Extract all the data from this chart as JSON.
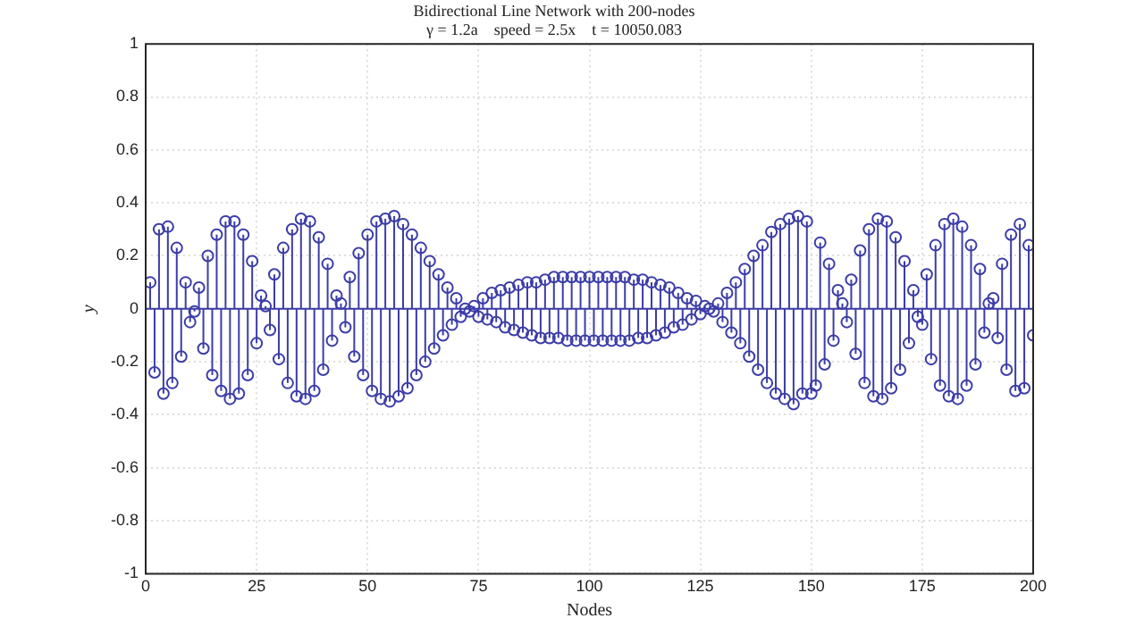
{
  "chart_data": {
    "type": "lollipop",
    "title": "Bidirectional Line Network with 200-nodes",
    "subtitle": "γ = 1.2a    speed = 2.5x    t = 10050.083",
    "xlabel": "Nodes",
    "ylabel": "y",
    "color": "#3c3ca8",
    "marker": "circle",
    "grid": true,
    "ref_lines": [
      {
        "axis": "y",
        "value": 0,
        "color": "#3c3ca8"
      }
    ],
    "x": [
      1,
      2,
      3,
      4,
      5,
      6,
      7,
      8,
      9,
      10,
      11,
      12,
      13,
      14,
      15,
      16,
      17,
      18,
      19,
      20,
      21,
      22,
      23,
      24,
      25,
      26,
      27,
      28,
      29,
      30,
      31,
      32,
      33,
      34,
      35,
      36,
      37,
      38,
      39,
      40,
      41,
      42,
      43,
      44,
      45,
      46,
      47,
      48,
      49,
      50,
      51,
      52,
      53,
      54,
      55,
      56,
      57,
      58,
      59,
      60,
      61,
      62,
      63,
      64,
      65,
      66,
      67,
      68,
      69,
      70,
      71,
      72,
      73,
      74,
      75,
      76,
      77,
      78,
      79,
      80,
      81,
      82,
      83,
      84,
      85,
      86,
      87,
      88,
      89,
      90,
      91,
      92,
      93,
      94,
      95,
      96,
      97,
      98,
      99,
      100,
      101,
      102,
      103,
      104,
      105,
      106,
      107,
      108,
      109,
      110,
      111,
      112,
      113,
      114,
      115,
      116,
      117,
      118,
      119,
      120,
      121,
      122,
      123,
      124,
      125,
      126,
      127,
      128,
      129,
      130,
      131,
      132,
      133,
      134,
      135,
      136,
      137,
      138,
      139,
      140,
      141,
      142,
      143,
      144,
      145,
      146,
      147,
      148,
      149,
      150,
      151,
      152,
      153,
      154,
      155,
      156,
      157,
      158,
      159,
      160,
      161,
      162,
      163,
      164,
      165,
      166,
      167,
      168,
      169,
      170,
      171,
      172,
      173,
      174,
      175,
      176,
      177,
      178,
      179,
      180,
      181,
      182,
      183,
      184,
      185,
      186,
      187,
      188,
      189,
      190,
      191,
      192,
      193,
      194,
      195,
      196,
      197,
      198,
      199,
      200
    ],
    "xlim": [
      0,
      200
    ],
    "xticks": [
      0,
      25,
      50,
      75,
      100,
      125,
      150,
      175,
      200
    ],
    "ylim": [
      -1,
      1
    ],
    "yticks": [
      -1,
      -0.8,
      -0.6,
      -0.4,
      -0.2,
      0,
      0.2,
      0.4,
      0.6,
      0.8,
      1
    ],
    "values": [
      0.1,
      -0.24,
      0.3,
      -0.32,
      0.31,
      -0.28,
      0.23,
      -0.18,
      0.1,
      -0.05,
      -0.01,
      0.08,
      -0.15,
      0.2,
      -0.25,
      0.28,
      -0.31,
      0.33,
      -0.34,
      0.33,
      -0.32,
      0.28,
      -0.25,
      0.18,
      -0.13,
      0.05,
      0.01,
      -0.08,
      0.13,
      -0.19,
      0.23,
      -0.28,
      0.3,
      -0.33,
      0.34,
      -0.34,
      0.33,
      -0.31,
      0.27,
      -0.23,
      0.17,
      -0.12,
      0.05,
      0.02,
      -0.07,
      0.12,
      -0.18,
      0.21,
      -0.25,
      0.28,
      -0.31,
      0.33,
      -0.34,
      0.34,
      -0.35,
      0.35,
      -0.33,
      0.32,
      -0.3,
      0.28,
      -0.25,
      0.23,
      -0.2,
      0.18,
      -0.15,
      0.13,
      -0.1,
      0.08,
      -0.06,
      0.04,
      -0.03,
      0.0,
      -0.01,
      0.01,
      -0.03,
      0.04,
      -0.04,
      0.06,
      -0.05,
      0.07,
      -0.07,
      0.08,
      -0.08,
      0.09,
      -0.09,
      0.1,
      -0.1,
      0.1,
      -0.11,
      0.11,
      -0.11,
      0.12,
      -0.11,
      0.12,
      -0.12,
      0.12,
      -0.12,
      0.12,
      -0.12,
      0.12,
      -0.12,
      0.12,
      -0.12,
      0.12,
      -0.12,
      0.12,
      -0.12,
      0.12,
      -0.12,
      0.11,
      -0.11,
      0.11,
      -0.11,
      0.1,
      -0.1,
      0.09,
      -0.09,
      0.08,
      -0.07,
      0.06,
      -0.06,
      0.04,
      -0.04,
      0.03,
      -0.02,
      0.01,
      0.0,
      -0.01,
      0.02,
      -0.05,
      0.06,
      -0.09,
      0.1,
      -0.13,
      0.15,
      -0.18,
      0.2,
      -0.23,
      0.24,
      -0.28,
      0.29,
      -0.32,
      0.32,
      -0.34,
      0.34,
      -0.36,
      0.35,
      -0.32,
      0.33,
      -0.32,
      -0.29,
      0.25,
      -0.21,
      0.17,
      -0.12,
      0.07,
      0.02,
      -0.05,
      0.11,
      -0.17,
      0.22,
      -0.28,
      0.3,
      -0.33,
      0.34,
      -0.34,
      0.33,
      -0.3,
      0.27,
      -0.23,
      0.18,
      -0.13,
      0.07,
      -0.03,
      -0.06,
      0.13,
      -0.19,
      0.24,
      -0.29,
      0.32,
      -0.33,
      0.34,
      -0.34,
      0.31,
      -0.29,
      0.24,
      -0.21,
      0.15,
      -0.09,
      0.02,
      0.04,
      -0.11,
      0.17,
      -0.23,
      0.28,
      -0.31,
      0.32,
      -0.3,
      0.24,
      -0.1
    ]
  }
}
